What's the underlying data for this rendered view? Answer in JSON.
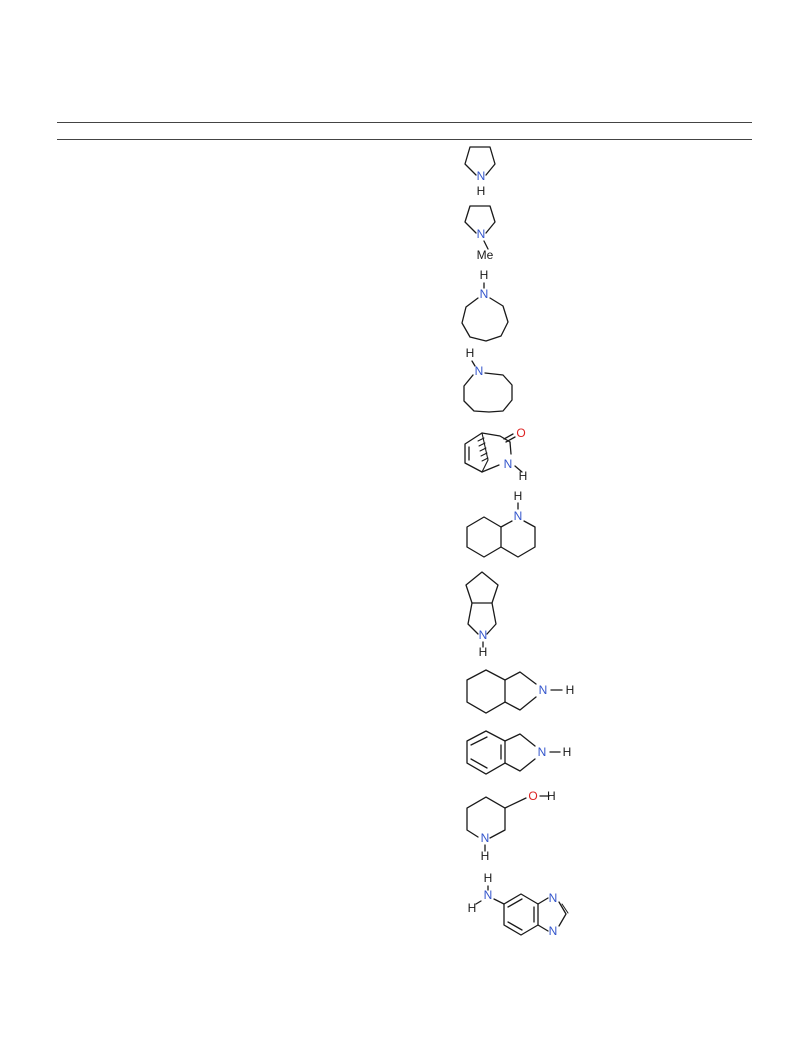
{
  "colors": {
    "bond": "#1a1a1a",
    "nitrogen": "#3355cc",
    "oxygen": "#dd2222",
    "text": "#1a1a1a",
    "rule": "#444444"
  },
  "labels": {
    "N": "N",
    "H": "H",
    "O": "O",
    "Me": "Me"
  },
  "structures": [
    {
      "name": "pyrrolidine"
    },
    {
      "name": "N-methylpyrrolidine"
    },
    {
      "name": "azepane"
    },
    {
      "name": "azocane"
    },
    {
      "name": "bicyclic-lactam"
    },
    {
      "name": "decahydroquinoline"
    },
    {
      "name": "octahydrocyclopenta-pyrrole"
    },
    {
      "name": "octahydroisoindole"
    },
    {
      "name": "isoindoline"
    },
    {
      "name": "3-hydroxypiperidine"
    },
    {
      "name": "5-aminobenzimidazole"
    }
  ]
}
